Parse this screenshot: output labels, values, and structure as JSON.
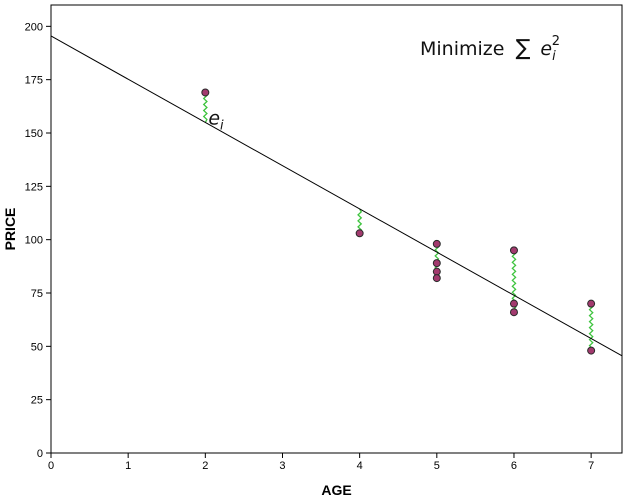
{
  "chart_data": {
    "type": "scatter",
    "xlabel": "AGE",
    "ylabel": "PRICE",
    "xlim": [
      0,
      7.4
    ],
    "ylim": [
      0,
      210
    ],
    "x_ticks": [
      0,
      1,
      2,
      3,
      4,
      5,
      6,
      7
    ],
    "y_ticks": [
      0,
      25,
      50,
      75,
      100,
      125,
      150,
      175,
      200
    ],
    "grid": false,
    "points": [
      {
        "x": 2,
        "y": 169
      },
      {
        "x": 4,
        "y": 103
      },
      {
        "x": 5,
        "y": 98
      },
      {
        "x": 5,
        "y": 89
      },
      {
        "x": 5,
        "y": 85
      },
      {
        "x": 5,
        "y": 82
      },
      {
        "x": 6,
        "y": 95
      },
      {
        "x": 6,
        "y": 70
      },
      {
        "x": 6,
        "y": 66
      },
      {
        "x": 7,
        "y": 70
      },
      {
        "x": 7,
        "y": 48
      }
    ],
    "regression_line": {
      "intercept": 195.47,
      "slope": -20.26
    },
    "residual_label": {
      "base": "e",
      "subscript": "i"
    },
    "formula": {
      "text": "Minimize",
      "symbol": "∑",
      "base": "e",
      "subscript": "i",
      "superscript": "2"
    },
    "colors": {
      "point_fill": "#a23a6e",
      "point_stroke": "#2a2a2a",
      "residual": "#3ec43e",
      "line": "#000000",
      "axis": "#000000"
    }
  }
}
